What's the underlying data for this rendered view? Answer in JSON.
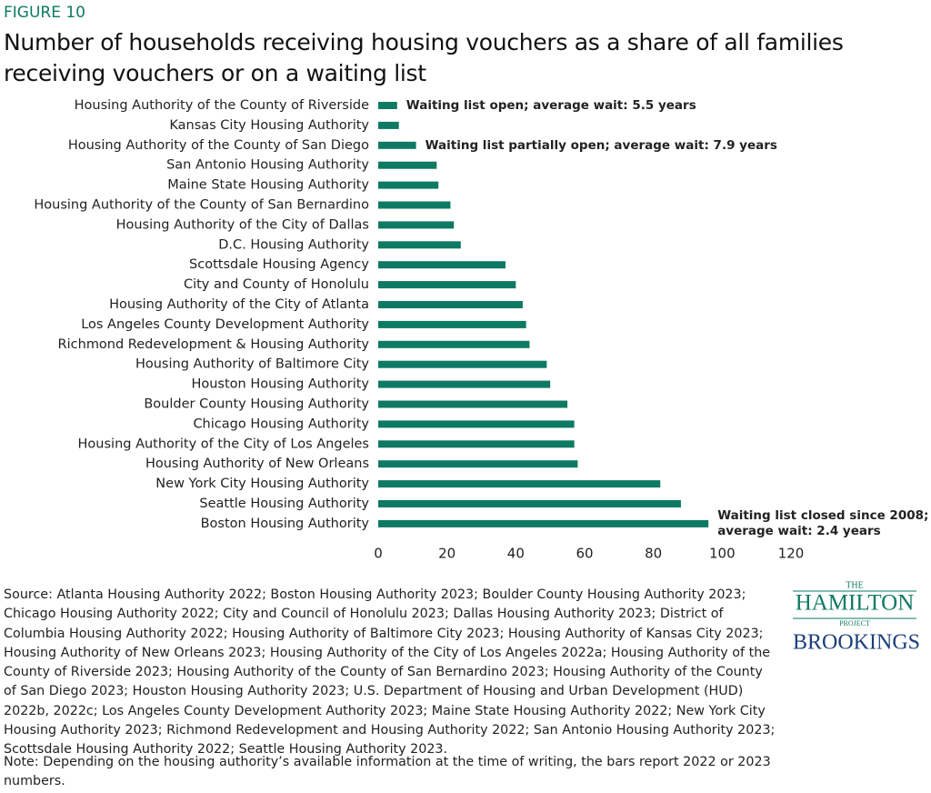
{
  "figure_label": "FIGURE 10",
  "chart_data": {
    "type": "hbar",
    "title": "Number of households receiving housing vouchers as a share of all families receiving vouchers or on a waiting list",
    "categories": [
      "Housing Authority of the County of Riverside",
      "Kansas City Housing Authority",
      "Housing Authority of the County of San Diego",
      "San Antonio Housing Authority",
      "Maine State Housing Authority",
      "Housing Authority of the County of San Bernardino",
      "Housing Authority of the City of Dallas",
      "D.C. Housing Authority",
      "Scottsdale Housing Agency",
      "City and County of Honolulu",
      "Housing Authority of the City of Atlanta",
      "Los Angeles County Development Authority",
      "Richmond Redevelopment & Housing Authority",
      "Housing Authority of Baltimore City",
      "Houston Housing Authority",
      "Boulder County Housing Authority",
      "Chicago Housing Authority",
      "Housing Authority of the City of Los Angeles",
      "Housing Authority of New Orleans",
      "New York City Housing Authority",
      "Seattle Housing Authority",
      "Boston Housing Authority"
    ],
    "values": [
      5.5,
      6,
      11,
      17,
      17.5,
      21,
      22,
      24,
      37,
      40,
      42,
      43,
      44,
      49,
      50,
      55,
      57,
      57,
      58,
      82,
      88,
      96
    ],
    "color": "#0e7a63",
    "xlim": [
      0,
      120
    ],
    "xticks": [
      0,
      20,
      40,
      60,
      80,
      100,
      120
    ],
    "grid": false,
    "annotations": [
      {
        "lines": [
          "Waiting list open; average wait: 5.5 years"
        ]
      },
      {
        "lines": [
          "Waiting list partially open; average wait: 7.9 years"
        ]
      },
      {
        "lines": [
          "Waiting list closed since 2008;",
          "average wait: 2.4 years"
        ]
      }
    ]
  },
  "source": "Source: Atlanta Housing Authority 2022; Boston Housing Authority 2023; Boulder County Housing Authority 2023; Chicago Housing Authority 2022; City and Council of Honolulu 2023; Dallas Housing Authority 2023; District of Columbia Housing Authority 2022; Housing Authority of Baltimore City 2023; Housing Authority of Kansas City 2023; Housing Authority of New Orleans 2023; Housing Authority of the City of Los Angeles 2022a; Housing Authority of the County of Riverside 2023; Housing Authority of the County of San Bernardino 2023; Housing Authority of the County of San Diego 2023; Houston Housing Authority 2023; U.S. Department of Housing and Urban Development (HUD) 2022b, 2022c; Los Angeles County Development Authority 2023; Maine State Housing Authority 2022; New York City Housing Authority 2023; Richmond Redevelopment and Housing Authority 2022; San Antonio Housing Authority 2023; Scottsdale Housing Authority 2022; Seattle Housing Authority 2023.",
  "note": "Note: Depending on the housing authority’s available information at the time of writing, the bars report 2022 or 2023 numbers.",
  "logo": {
    "the": "THE",
    "hamilton": "HAMILTON",
    "project": "PROJECT",
    "brookings": "BROOKINGS"
  }
}
